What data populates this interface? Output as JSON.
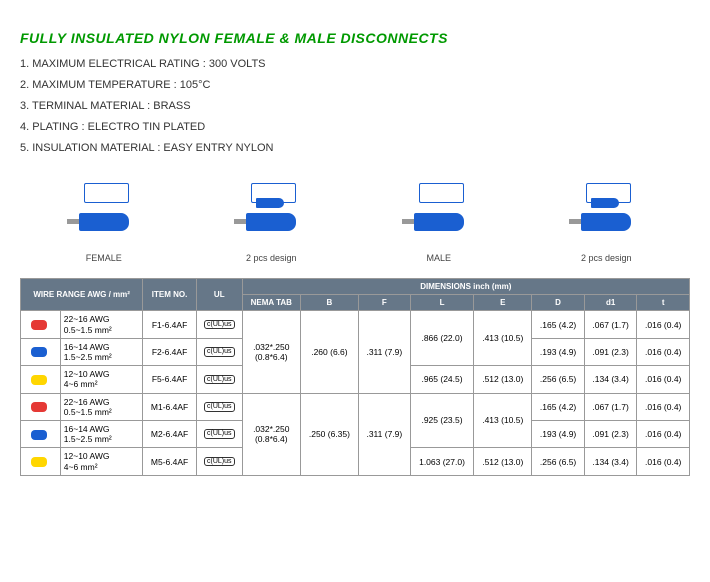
{
  "title": "FULLY INSULATED NYLON FEMALE & MALE DISCONNECTS",
  "specs": [
    "1. MAXIMUM ELECTRICAL RATING : 300 VOLTS",
    "2. MAXIMUM TEMPERATURE : 105°C",
    "3. TERMINAL MATERIAL : BRASS",
    "4. PLATING : ELECTRO TIN PLATED",
    "5. INSULATION MATERIAL : EASY ENTRY NYLON"
  ],
  "diagrams": [
    "FEMALE",
    "2 pcs design",
    "MALE",
    "2 pcs design"
  ],
  "headers": {
    "wire": "WIRE RANGE AWG / mm²",
    "item": "ITEM NO.",
    "ul": "UL",
    "dims": "DIMENSIONS inch (mm)",
    "nema": "NEMA TAB",
    "B": "B",
    "F": "F",
    "L": "L",
    "E": "E",
    "D": "D",
    "d1": "d1",
    "t": "t"
  },
  "rows": [
    {
      "swatch": "#e53935",
      "wire": "22~16 AWG\n0.5~1.5 mm²",
      "item": "F1-6.4AF",
      "ul": "c(UL)us",
      "nema_span": 3,
      "nema": ".032*.250\n(0.8*6.4)",
      "B_span": 3,
      "B": ".260  (6.6)",
      "F_span": 3,
      "F": ".311 (7.9)",
      "L_span": 2,
      "L": ".866 (22.0)",
      "E_span": 2,
      "E": ".413 (10.5)",
      "D": ".165   (4.2)",
      "d1": ".067 (1.7)",
      "t": ".016   (0.4)"
    },
    {
      "swatch": "#1a5fd1",
      "wire": "16~14 AWG\n1.5~2.5 mm²",
      "item": "F2-6.4AF",
      "ul": "c(UL)us",
      "D": ".193   (4.9)",
      "d1": ".091 (2.3)",
      "t": ".016   (0.4)"
    },
    {
      "swatch": "#ffd600",
      "wire": "12~10 AWG\n4~6 mm²",
      "item": "F5-6.4AF",
      "ul": "c(UL)us",
      "L": ".965 (24.5)",
      "E": ".512 (13.0)",
      "D": ".256   (6.5)",
      "d1": ".134 (3.4)",
      "t": ".016   (0.4)"
    },
    {
      "swatch": "#e53935",
      "wire": "22~16 AWG\n0.5~1.5 mm²",
      "item": "M1-6.4AF",
      "ul": "c(UL)us",
      "nema_span": 3,
      "nema": ".032*.250\n(0.8*6.4)",
      "B_span": 3,
      "B": ".250  (6.35)",
      "F_span": 3,
      "F": ".311 (7.9)",
      "L_span": 2,
      "L": ".925 (23.5)",
      "E_span": 2,
      "E": ".413 (10.5)",
      "D": ".165   (4.2)",
      "d1": ".067 (1.7)",
      "t": ".016   (0.4)"
    },
    {
      "swatch": "#1a5fd1",
      "wire": "16~14 AWG\n1.5~2.5 mm²",
      "item": "M2-6.4AF",
      "ul": "c(UL)us",
      "D": ".193   (4.9)",
      "d1": ".091 (2.3)",
      "t": ".016   (0.4)"
    },
    {
      "swatch": "#ffd600",
      "wire": "12~10 AWG\n4~6 mm²",
      "item": "M5-6.4AF",
      "ul": "c(UL)us",
      "L": "1.063 (27.0)",
      "E": ".512 (13.0)",
      "D": ".256   (6.5)",
      "d1": ".134 (3.4)",
      "t": ".016   (0.4)"
    }
  ]
}
